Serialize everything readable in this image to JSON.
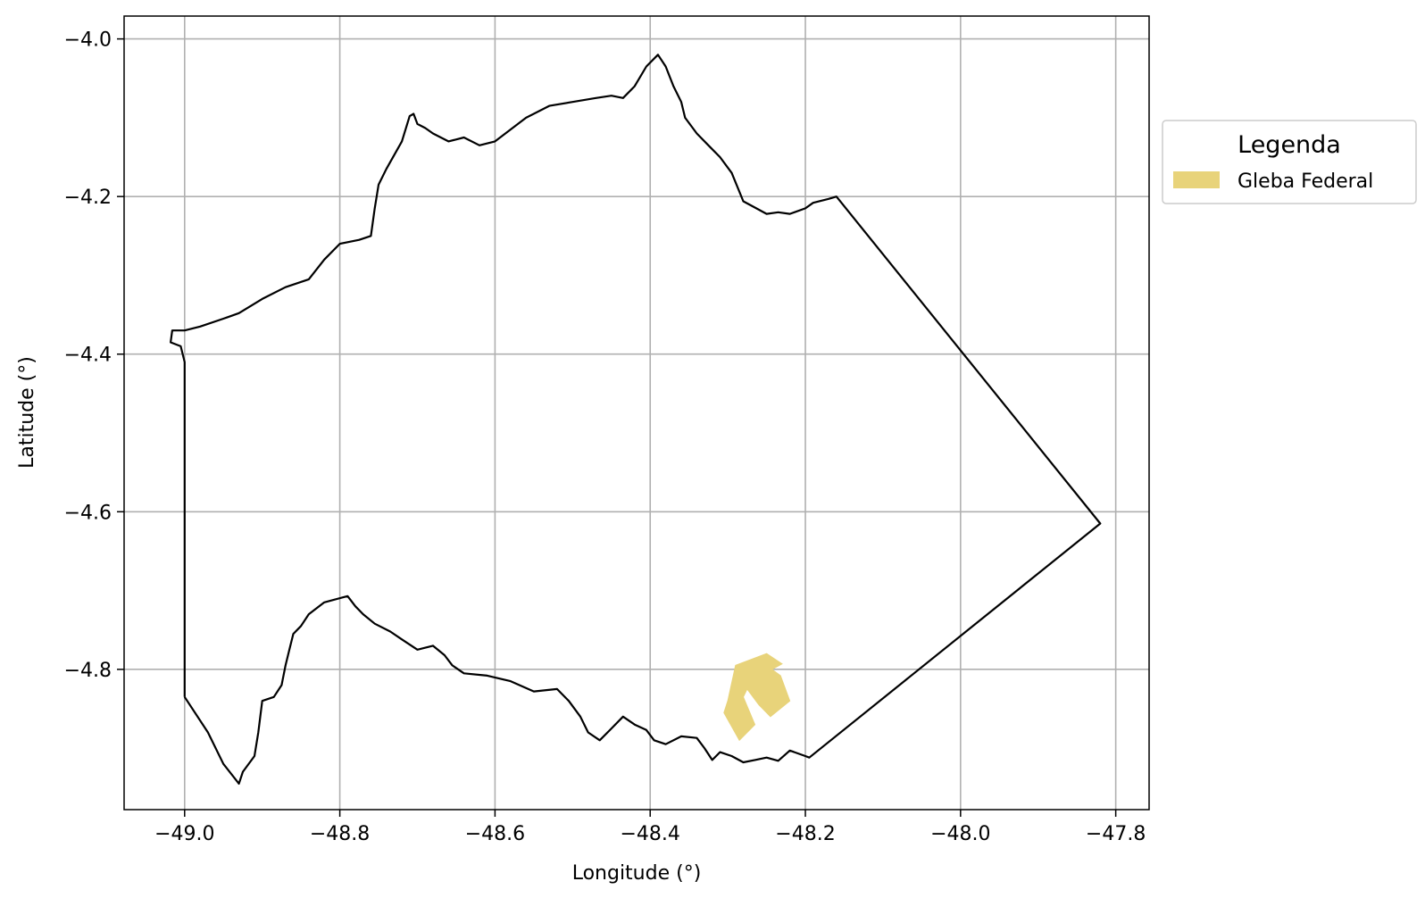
{
  "chart_data": {
    "type": "map",
    "title": "",
    "xlabel": "Longitude (°)",
    "ylabel": "Latitude (°)",
    "xlim": [
      -49.078,
      -47.757
    ],
    "ylim": [
      -4.978,
      -3.971
    ],
    "grid": true,
    "xticks": [
      {
        "value": -49.0,
        "label": "−49.0"
      },
      {
        "value": -48.8,
        "label": "−48.8"
      },
      {
        "value": -48.6,
        "label": "−48.6"
      },
      {
        "value": -48.4,
        "label": "−48.4"
      },
      {
        "value": -48.2,
        "label": "−48.2"
      },
      {
        "value": -48.0,
        "label": "−48.0"
      },
      {
        "value": -47.8,
        "label": "−47.8"
      }
    ],
    "yticks": [
      {
        "value": -4.0,
        "label": "−4.0"
      },
      {
        "value": -4.2,
        "label": "−4.2"
      },
      {
        "value": -4.4,
        "label": "−4.4"
      },
      {
        "value": -4.6,
        "label": "−4.6"
      },
      {
        "value": -4.8,
        "label": "−4.8"
      }
    ],
    "legend": {
      "title": "Legenda",
      "placement": "outside-right",
      "entries": [
        {
          "label": "Gleba Federal",
          "color": "#e8d37a"
        }
      ]
    },
    "boundary": {
      "stroke": "#000000",
      "coords": [
        [
          -49.0,
          -4.835
        ],
        [
          -48.97,
          -4.88
        ],
        [
          -48.95,
          -4.92
        ],
        [
          -48.93,
          -4.945
        ],
        [
          -48.925,
          -4.93
        ],
        [
          -48.91,
          -4.91
        ],
        [
          -48.905,
          -4.88
        ],
        [
          -48.9,
          -4.84
        ],
        [
          -48.885,
          -4.835
        ],
        [
          -48.875,
          -4.82
        ],
        [
          -48.87,
          -4.795
        ],
        [
          -48.865,
          -4.775
        ],
        [
          -48.86,
          -4.755
        ],
        [
          -48.85,
          -4.745
        ],
        [
          -48.84,
          -4.73
        ],
        [
          -48.82,
          -4.715
        ],
        [
          -48.79,
          -4.707
        ],
        [
          -48.78,
          -4.72
        ],
        [
          -48.77,
          -4.73
        ],
        [
          -48.755,
          -4.742
        ],
        [
          -48.735,
          -4.752
        ],
        [
          -48.72,
          -4.762
        ],
        [
          -48.7,
          -4.775
        ],
        [
          -48.68,
          -4.77
        ],
        [
          -48.665,
          -4.782
        ],
        [
          -48.655,
          -4.795
        ],
        [
          -48.64,
          -4.805
        ],
        [
          -48.61,
          -4.808
        ],
        [
          -48.58,
          -4.815
        ],
        [
          -48.55,
          -4.828
        ],
        [
          -48.52,
          -4.825
        ],
        [
          -48.505,
          -4.84
        ],
        [
          -48.49,
          -4.86
        ],
        [
          -48.48,
          -4.88
        ],
        [
          -48.465,
          -4.89
        ],
        [
          -48.45,
          -4.875
        ],
        [
          -48.435,
          -4.86
        ],
        [
          -48.42,
          -4.87
        ],
        [
          -48.405,
          -4.877
        ],
        [
          -48.395,
          -4.89
        ],
        [
          -48.38,
          -4.895
        ],
        [
          -48.36,
          -4.885
        ],
        [
          -48.34,
          -4.887
        ],
        [
          -48.33,
          -4.9
        ],
        [
          -48.32,
          -4.915
        ],
        [
          -48.31,
          -4.905
        ],
        [
          -48.295,
          -4.91
        ],
        [
          -48.28,
          -4.918
        ],
        [
          -48.265,
          -4.915
        ],
        [
          -48.25,
          -4.912
        ],
        [
          -48.235,
          -4.916
        ],
        [
          -48.22,
          -4.903
        ],
        [
          -48.2,
          -4.91
        ],
        [
          -48.195,
          -4.912
        ],
        [
          -47.82,
          -4.615
        ],
        [
          -48.16,
          -4.2
        ],
        [
          -48.17,
          -4.203
        ],
        [
          -48.19,
          -4.208
        ],
        [
          -48.2,
          -4.215
        ],
        [
          -48.22,
          -4.222
        ],
        [
          -48.235,
          -4.22
        ],
        [
          -48.25,
          -4.222
        ],
        [
          -48.265,
          -4.214
        ],
        [
          -48.28,
          -4.206
        ],
        [
          -48.295,
          -4.17
        ],
        [
          -48.31,
          -4.15
        ],
        [
          -48.325,
          -4.135
        ],
        [
          -48.34,
          -4.12
        ],
        [
          -48.355,
          -4.1
        ],
        [
          -48.36,
          -4.08
        ],
        [
          -48.37,
          -4.06
        ],
        [
          -48.38,
          -4.035
        ],
        [
          -48.39,
          -4.02
        ],
        [
          -48.405,
          -4.035
        ],
        [
          -48.42,
          -4.06
        ],
        [
          -48.435,
          -4.075
        ],
        [
          -48.45,
          -4.072
        ],
        [
          -48.47,
          -4.075
        ],
        [
          -48.5,
          -4.08
        ],
        [
          -48.53,
          -4.085
        ],
        [
          -48.56,
          -4.1
        ],
        [
          -48.58,
          -4.115
        ],
        [
          -48.6,
          -4.13
        ],
        [
          -48.62,
          -4.135
        ],
        [
          -48.64,
          -4.125
        ],
        [
          -48.66,
          -4.13
        ],
        [
          -48.68,
          -4.12
        ],
        [
          -48.69,
          -4.113
        ],
        [
          -48.7,
          -4.108
        ],
        [
          -48.705,
          -4.095
        ],
        [
          -48.71,
          -4.098
        ],
        [
          -48.72,
          -4.13
        ],
        [
          -48.74,
          -4.165
        ],
        [
          -48.75,
          -4.185
        ],
        [
          -48.755,
          -4.215
        ],
        [
          -48.76,
          -4.25
        ],
        [
          -48.775,
          -4.255
        ],
        [
          -48.8,
          -4.26
        ],
        [
          -48.82,
          -4.28
        ],
        [
          -48.84,
          -4.305
        ],
        [
          -48.87,
          -4.315
        ],
        [
          -48.9,
          -4.33
        ],
        [
          -48.93,
          -4.348
        ],
        [
          -48.95,
          -4.355
        ],
        [
          -48.98,
          -4.365
        ],
        [
          -49.0,
          -4.37
        ],
        [
          -49.016,
          -4.37
        ],
        [
          -49.018,
          -4.385
        ],
        [
          -49.005,
          -4.39
        ],
        [
          -49.0,
          -4.41
        ],
        [
          -49.0,
          -4.835
        ]
      ]
    },
    "features": [
      {
        "name": "Gleba Federal",
        "color": "#e8d37a",
        "coords": [
          [
            -48.29,
            -4.795
          ],
          [
            -48.25,
            -4.78
          ],
          [
            -48.23,
            -4.793
          ],
          [
            -48.243,
            -4.8
          ],
          [
            -48.232,
            -4.808
          ],
          [
            -48.22,
            -4.84
          ],
          [
            -48.245,
            -4.86
          ],
          [
            -48.26,
            -4.845
          ],
          [
            -48.275,
            -4.825
          ],
          [
            -48.28,
            -4.835
          ],
          [
            -48.265,
            -4.87
          ],
          [
            -48.285,
            -4.89
          ],
          [
            -48.305,
            -4.855
          ],
          [
            -48.3,
            -4.84
          ]
        ]
      }
    ]
  }
}
